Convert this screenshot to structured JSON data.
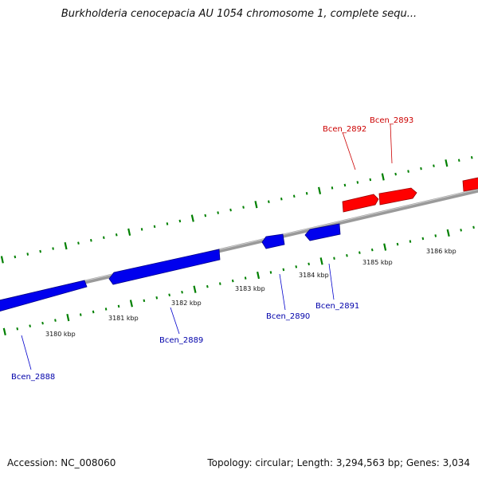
{
  "title": "Burkholderia cenocepacia AU 1054 chromosome 1, complete sequ...",
  "footer": {
    "accession": "Accession: NC_008060",
    "summary": "Topology: circular; Length: 3,294,563 bp; Genes: 3,034"
  },
  "colors": {
    "forward_gene": "#ff0000",
    "reverse_gene": "#0000ff",
    "ticks": "#008000",
    "backbone": "#808080",
    "forward_label": "#cc0000",
    "reverse_label": "#0000aa"
  },
  "scale_labels": [
    "3180 kbp",
    "3181 kbp",
    "3182 kbp",
    "3183 kbp",
    "3184 kbp",
    "3185 kbp",
    "3186 kbp"
  ],
  "genes": [
    {
      "name": "Bcen_2888",
      "strand": "reverse"
    },
    {
      "name": "Bcen_2889",
      "strand": "reverse"
    },
    {
      "name": "Bcen_2890",
      "strand": "reverse"
    },
    {
      "name": "Bcen_2891",
      "strand": "reverse"
    },
    {
      "name": "Bcen_2892",
      "strand": "forward"
    },
    {
      "name": "Bcen_2893",
      "strand": "forward"
    }
  ]
}
